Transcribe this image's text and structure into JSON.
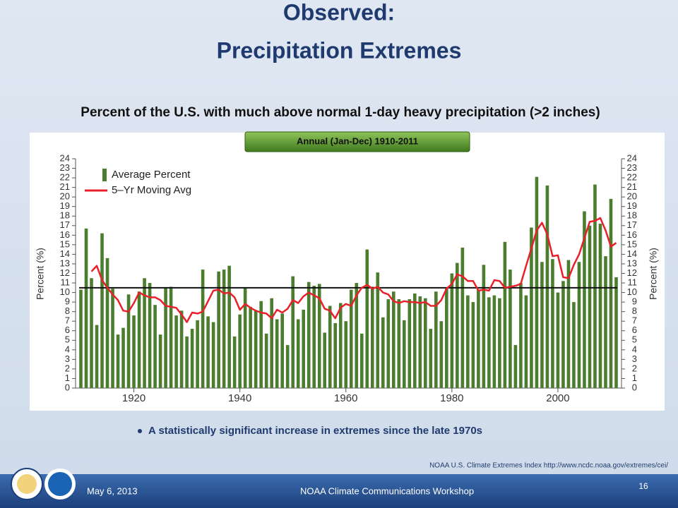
{
  "slide": {
    "title_line1": "Observed:",
    "title_line2": "Precipitation Extremes",
    "bullet": "A statistically significant increase in extremes since the late 1970s",
    "source": "NOAA U.S. Climate Extremes Index http://www.ncdc.noaa.gov/extremes/cei/",
    "date": "May 6, 2013",
    "footer": "NOAA Climate Communications Workshop",
    "page": "16"
  },
  "chart_data": {
    "type": "bar_line",
    "title": "Percent of the U.S. with much above normal 1-day heavy precipitation (>2 inches)",
    "subtitle": "Annual (Jan-Dec) 1910-2011",
    "ylabel": "Percent (%)",
    "y2label": "Percent (%)",
    "x": [
      1910,
      1911,
      1912,
      1913,
      1914,
      1915,
      1916,
      1917,
      1918,
      1919,
      1920,
      1921,
      1922,
      1923,
      1924,
      1925,
      1926,
      1927,
      1928,
      1929,
      1930,
      1931,
      1932,
      1933,
      1934,
      1935,
      1936,
      1937,
      1938,
      1939,
      1940,
      1941,
      1942,
      1943,
      1944,
      1945,
      1946,
      1947,
      1948,
      1949,
      1950,
      1951,
      1952,
      1953,
      1954,
      1955,
      1956,
      1957,
      1958,
      1959,
      1960,
      1961,
      1962,
      1963,
      1964,
      1965,
      1966,
      1967,
      1968,
      1969,
      1970,
      1971,
      1972,
      1973,
      1974,
      1975,
      1976,
      1977,
      1978,
      1979,
      1980,
      1981,
      1982,
      1983,
      1984,
      1985,
      1986,
      1987,
      1988,
      1989,
      1990,
      1991,
      1992,
      1993,
      1994,
      1995,
      1996,
      1997,
      1998,
      1999,
      2000,
      2001,
      2002,
      2003,
      2004,
      2005,
      2006,
      2007,
      2008,
      2009,
      2010,
      2011
    ],
    "series": [
      {
        "name": "Average Percent",
        "color": "#4b7d2e",
        "kind": "bar",
        "values": [
          10.3,
          16.7,
          11.5,
          6.6,
          16.2,
          13.6,
          10.4,
          5.6,
          6.3,
          9.8,
          7.6,
          10.1,
          11.5,
          11.0,
          8.7,
          5.6,
          10.5,
          10.6,
          7.6,
          8.1,
          5.4,
          6.2,
          7.1,
          12.4,
          7.5,
          6.9,
          12.2,
          12.4,
          12.8,
          5.4,
          7.7,
          10.5,
          8.5,
          8.1,
          9.1,
          5.7,
          9.4,
          7.2,
          7.8,
          4.5,
          11.7,
          7.2,
          8.2,
          11.1,
          10.7,
          10.9,
          5.8,
          8.6,
          6.8,
          8.9,
          7.0,
          10.3,
          11.0,
          5.7,
          14.5,
          10.6,
          12.1,
          7.4,
          9.3,
          10.1,
          9.3,
          7.1,
          9.3,
          9.9,
          9.6,
          9.4,
          6.2,
          10.1,
          7.0,
          10.4,
          12.0,
          13.1,
          14.7,
          9.7,
          9.0,
          10.3,
          12.9,
          9.5,
          9.7,
          9.4,
          15.3,
          12.4,
          4.5,
          11.0,
          9.7,
          16.8,
          22.1,
          13.2,
          21.2,
          13.5,
          10.0,
          11.2,
          13.4,
          9.0,
          13.2,
          18.5,
          17.0,
          21.3,
          17.2,
          13.8,
          19.8,
          11.6
        ]
      },
      {
        "name": "5–Yr Moving Avg",
        "color": "#e8202a",
        "kind": "line",
        "values": [
          null,
          null,
          12.2,
          12.8,
          11.3,
          10.5,
          9.8,
          9.2,
          8.1,
          8.0,
          8.9,
          10.0,
          9.7,
          9.5,
          9.5,
          9.2,
          8.6,
          8.5,
          8.4,
          7.7,
          6.9,
          7.9,
          7.8,
          8.0,
          9.1,
          10.2,
          10.3,
          9.9,
          10.0,
          9.5,
          8.2,
          8.8,
          8.4,
          8.1,
          7.9,
          7.8,
          7.3,
          8.2,
          7.9,
          8.3,
          9.2,
          8.9,
          9.6,
          10.0,
          9.7,
          9.4,
          8.3,
          8.1,
          7.3,
          8.4,
          8.8,
          8.6,
          9.7,
          10.5,
          10.8,
          10.4,
          10.6,
          10.0,
          9.8,
          9.1,
          8.9,
          9.1,
          9.0,
          9.0,
          8.9,
          9.0,
          8.6,
          8.6,
          9.2,
          10.4,
          10.9,
          11.9,
          11.7,
          11.2,
          11.2,
          10.2,
          10.3,
          10.2,
          11.3,
          11.2,
          10.5,
          10.6,
          10.7,
          10.9,
          12.8,
          14.6,
          16.5,
          17.3,
          16.1,
          13.8,
          13.9,
          11.6,
          11.5,
          12.9,
          14.0,
          15.7,
          17.4,
          17.5,
          17.8,
          16.5,
          14.8,
          15.2
        ]
      }
    ],
    "reference_line": 10.5,
    "legend": "upper left",
    "xlim": [
      1909,
      2012
    ],
    "xticks": [
      1920,
      1940,
      1960,
      1980,
      2000
    ],
    "ylim": [
      0,
      24
    ],
    "yticks": [
      0,
      1,
      2,
      3,
      4,
      5,
      6,
      7,
      8,
      9,
      10,
      11,
      12,
      13,
      14,
      15,
      16,
      17,
      18,
      19,
      20,
      21,
      22,
      23,
      24
    ],
    "y2lim": [
      0,
      24
    ],
    "y2ticks": [
      0,
      1,
      2,
      3,
      4,
      5,
      6,
      7,
      8,
      9,
      10,
      11,
      12,
      13,
      14,
      15,
      16,
      17,
      18,
      19,
      20,
      21,
      22,
      23,
      24
    ]
  }
}
